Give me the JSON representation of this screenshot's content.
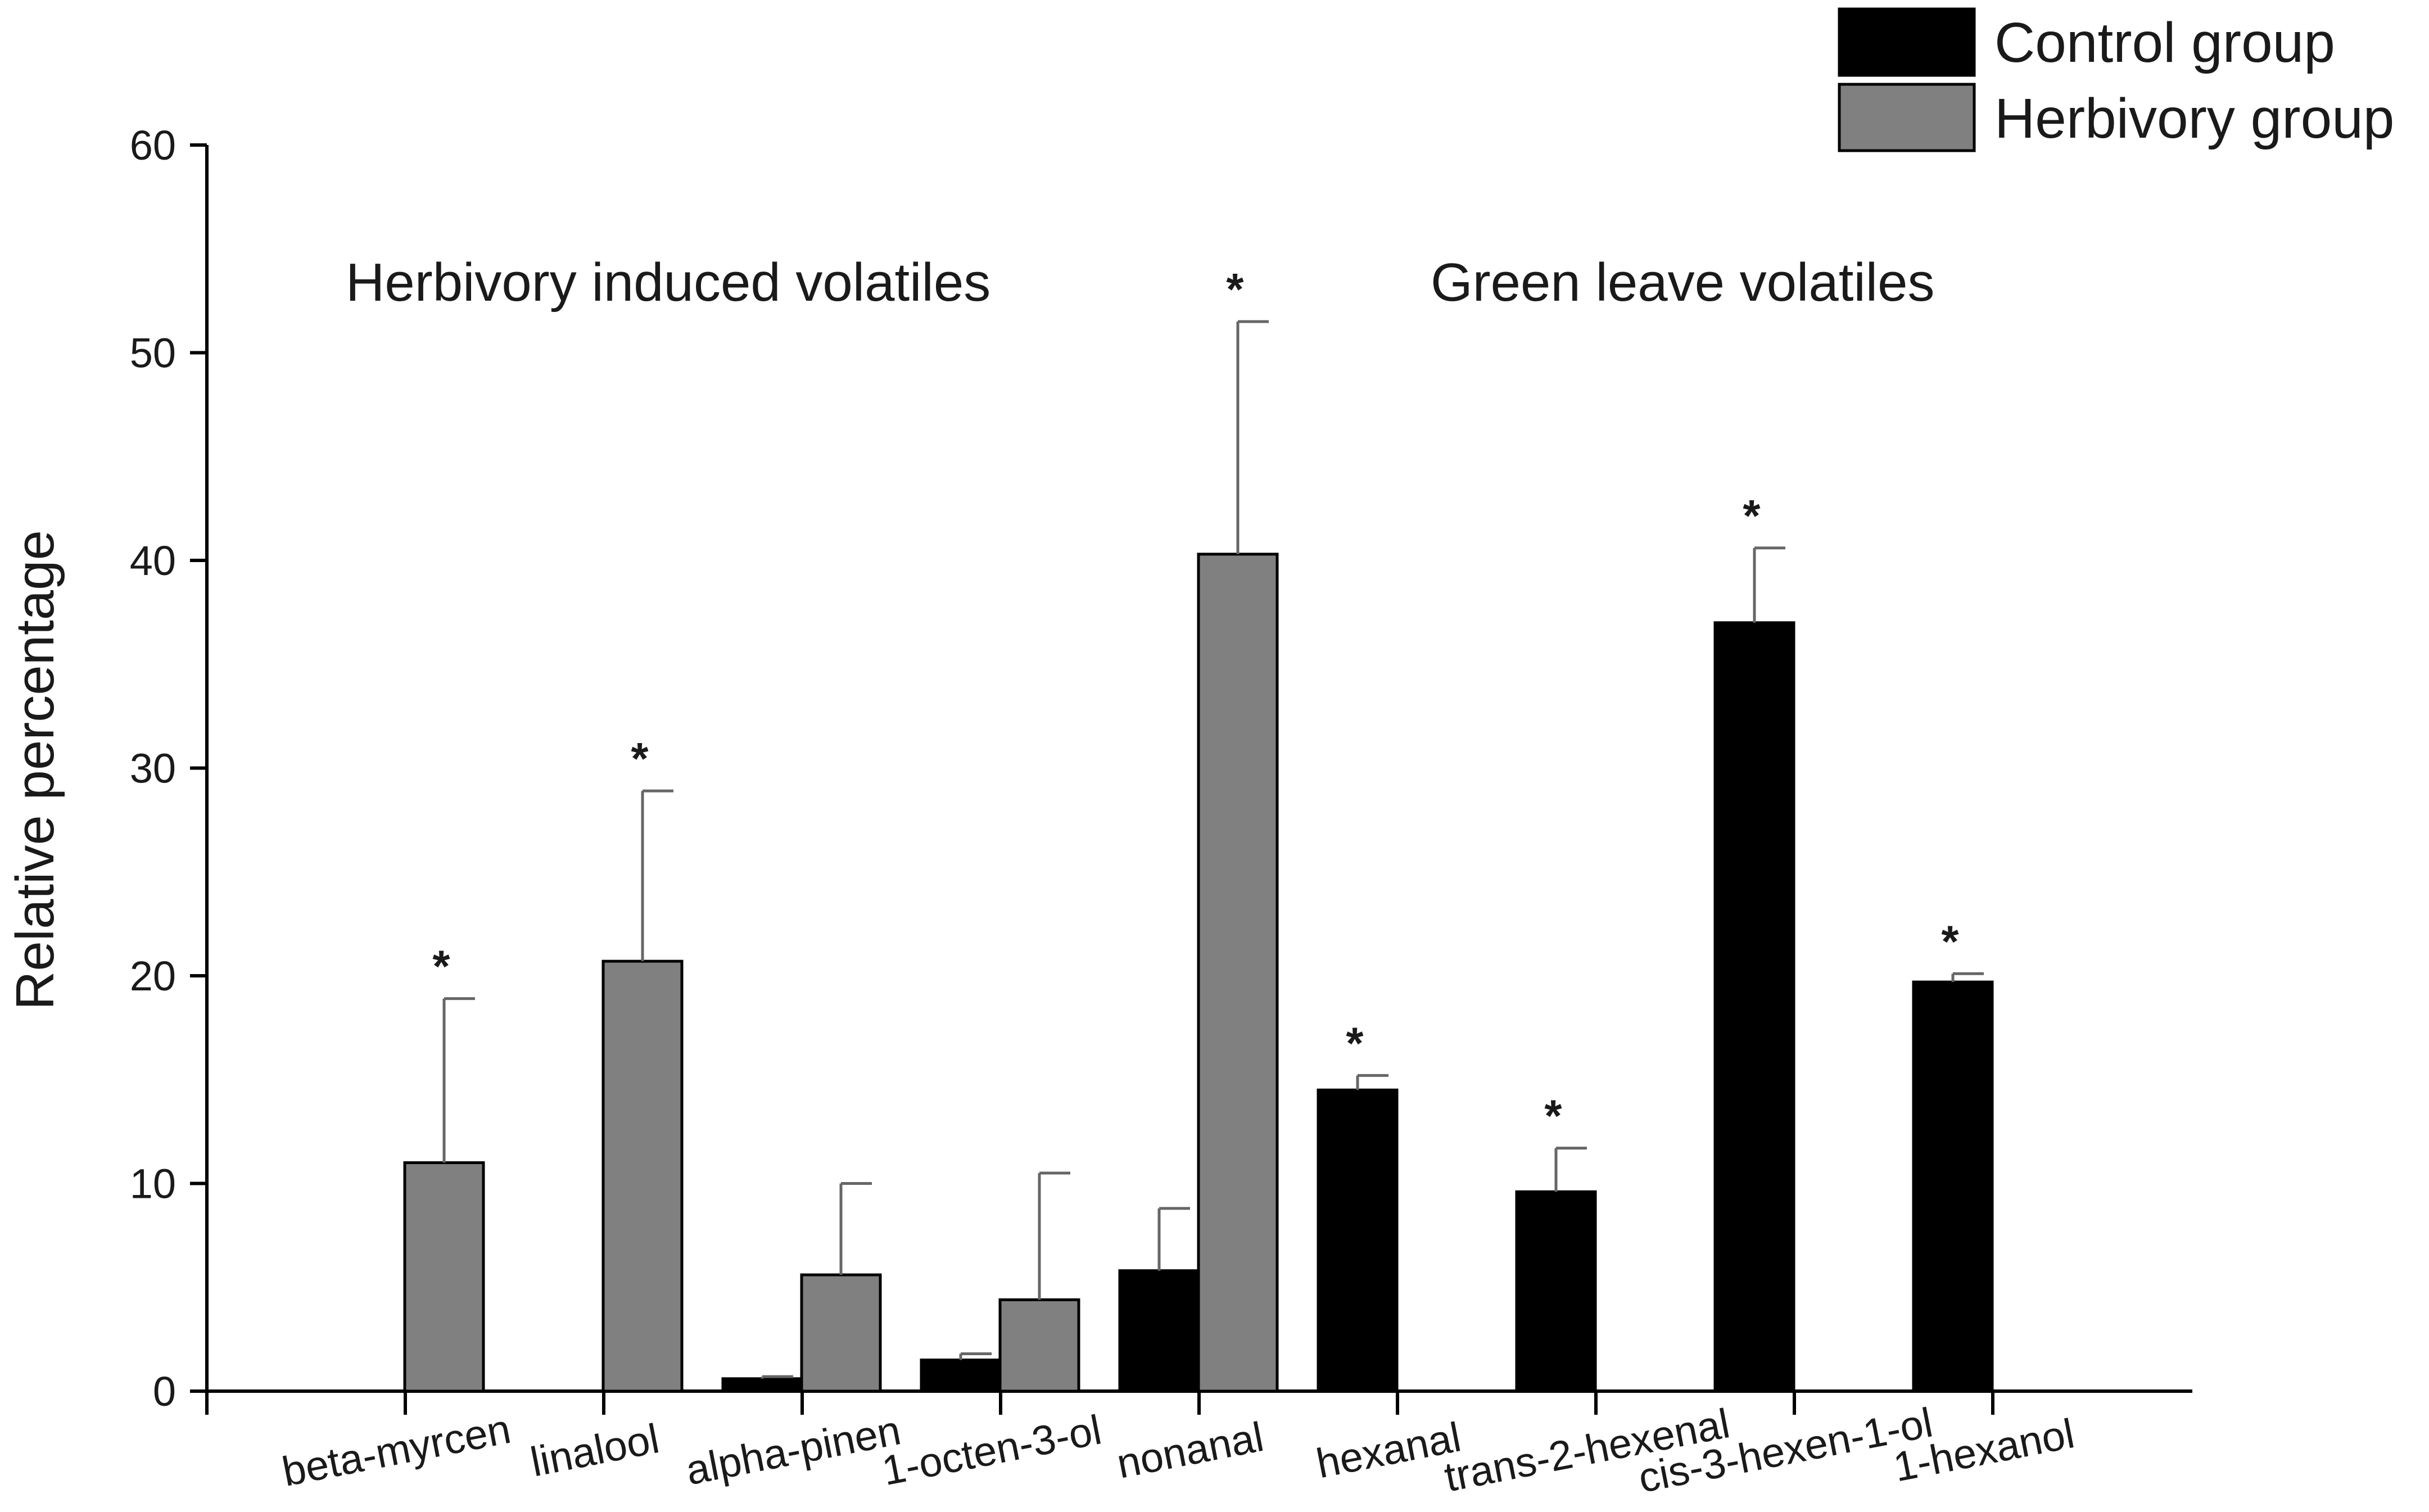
{
  "chart_data": {
    "type": "bar",
    "title": "",
    "xlabel": "",
    "ylabel": "Relative percentage",
    "ylim": [
      0,
      60
    ],
    "yticks": [
      0,
      10,
      20,
      30,
      40,
      50,
      60
    ],
    "categories": [
      "beta-myrcen",
      "linalool",
      "alpha-pinen",
      "1-octen-3-ol",
      "nonanal",
      "hexanal",
      "trans-2-hexenal",
      "cis-3-hexen-1-ol",
      "1-hexanol"
    ],
    "series": [
      {
        "name": "Control group",
        "color": "#000000",
        "values": [
          0,
          0,
          0.6,
          1.5,
          5.8,
          14.5,
          9.6,
          37.0,
          19.7
        ],
        "errors": [
          0,
          0,
          0.1,
          0.3,
          3.0,
          0.7,
          2.1,
          3.6,
          0.4
        ]
      },
      {
        "name": "Herbivory group",
        "color": "#808080",
        "values": [
          11.0,
          20.7,
          5.6,
          4.4,
          40.3,
          0,
          0,
          0,
          0
        ],
        "errors": [
          7.9,
          8.2,
          4.4,
          6.1,
          11.2,
          0,
          0,
          0,
          0
        ]
      }
    ],
    "significance": [
      {
        "category": "beta-myrcen",
        "series": "Herbivory group",
        "mark": "*"
      },
      {
        "category": "linalool",
        "series": "Herbivory group",
        "mark": "*"
      },
      {
        "category": "nonanal",
        "series": "Herbivory group",
        "mark": "*"
      },
      {
        "category": "hexanal",
        "series": "Control group",
        "mark": "*"
      },
      {
        "category": "trans-2-hexenal",
        "series": "Control group",
        "mark": "*"
      },
      {
        "category": "cis-3-hexen-1-ol",
        "series": "Control group",
        "mark": "*"
      },
      {
        "category": "1-hexanol",
        "series": "Control group",
        "mark": "*"
      }
    ],
    "annotations": [
      {
        "text": "Herbivory induced volatiles",
        "group": "left"
      },
      {
        "text": "Green leave volatiles",
        "group": "right"
      }
    ],
    "legend": {
      "position": "top-right",
      "entries": [
        "Control group",
        "Herbivory group"
      ]
    }
  }
}
